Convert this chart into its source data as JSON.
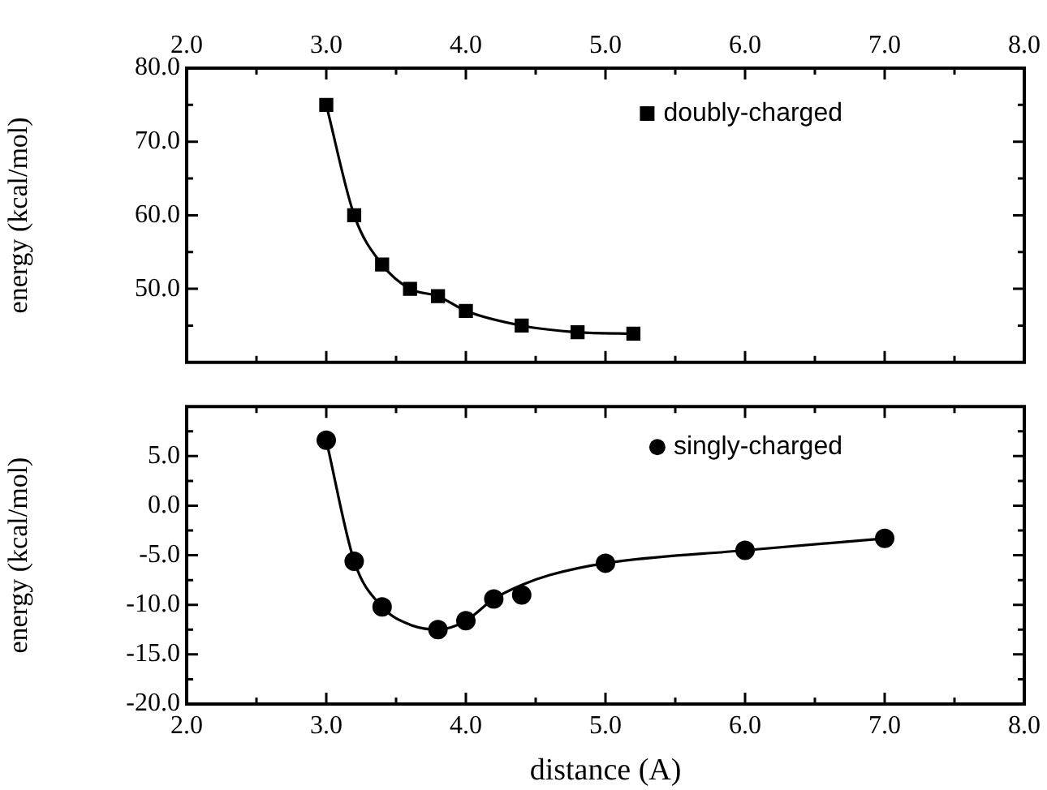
{
  "chart_data": [
    {
      "type": "line",
      "ylabel": "energy (kcal/mol)",
      "xlim": [
        2,
        8
      ],
      "xticks": [
        {
          "value": 2,
          "label": "2.0"
        },
        {
          "value": 2.5,
          "label": null
        },
        {
          "value": 3,
          "label": "3.0"
        },
        {
          "value": 3.5,
          "label": null
        },
        {
          "value": 4,
          "label": "4.0"
        },
        {
          "value": 4.5,
          "label": null
        },
        {
          "value": 5,
          "label": "5.0"
        },
        {
          "value": 5.5,
          "label": null
        },
        {
          "value": 6,
          "label": "6.0"
        },
        {
          "value": 6.5,
          "label": null
        },
        {
          "value": 7,
          "label": "7.0"
        },
        {
          "value": 7.5,
          "label": null
        },
        {
          "value": 8,
          "label": "8.0"
        }
      ],
      "ylim": [
        40,
        80
      ],
      "yticks": [
        {
          "value": 45,
          "label": null
        },
        {
          "value": 50,
          "label": "50.0"
        },
        {
          "value": 55,
          "label": null
        },
        {
          "value": 60,
          "label": "60.0"
        },
        {
          "value": 65,
          "label": null
        },
        {
          "value": 70,
          "label": "70.0"
        },
        {
          "value": 75,
          "label": null
        },
        {
          "value": 80,
          "label": "80.0"
        }
      ],
      "grid": false,
      "legend": "top right",
      "series": [
        {
          "name": "doubly-charged",
          "marker": "square",
          "color": "#000000",
          "x": [
            3.0,
            3.2,
            3.4,
            3.6,
            3.8,
            4.0,
            4.4,
            4.8,
            5.2
          ],
          "values": [
            75,
            60,
            53.3,
            50,
            49,
            47,
            45,
            44.1,
            43.9
          ]
        }
      ]
    },
    {
      "type": "scatter",
      "xlabel": "distance (A)",
      "ylabel": "energy (kcal/mol)",
      "xlim": [
        2,
        8
      ],
      "xticks": [
        {
          "value": 2,
          "label": "2.0"
        },
        {
          "value": 2.5,
          "label": null
        },
        {
          "value": 3,
          "label": "3.0"
        },
        {
          "value": 3.5,
          "label": null
        },
        {
          "value": 4,
          "label": "4.0"
        },
        {
          "value": 4.5,
          "label": null
        },
        {
          "value": 5,
          "label": "5.0"
        },
        {
          "value": 5.5,
          "label": null
        },
        {
          "value": 6,
          "label": "6.0"
        },
        {
          "value": 6.5,
          "label": null
        },
        {
          "value": 7,
          "label": "7.0"
        },
        {
          "value": 7.5,
          "label": null
        },
        {
          "value": 8,
          "label": "8.0"
        }
      ],
      "ylim": [
        -20,
        10
      ],
      "yticks": [
        {
          "value": -20,
          "label": "-20.0"
        },
        {
          "value": -17.5,
          "label": null
        },
        {
          "value": -15,
          "label": "-15.0"
        },
        {
          "value": -12.5,
          "label": null
        },
        {
          "value": -10,
          "label": "-10.0"
        },
        {
          "value": -7.5,
          "label": null
        },
        {
          "value": -5,
          "label": "-5.0"
        },
        {
          "value": -2.5,
          "label": null
        },
        {
          "value": 0,
          "label": "0.0"
        },
        {
          "value": 2.5,
          "label": null
        },
        {
          "value": 5,
          "label": "5.0"
        },
        {
          "value": 7.5,
          "label": null
        }
      ],
      "grid": false,
      "legend": "top right",
      "series": [
        {
          "name": "singly-charged",
          "marker": "circle",
          "color": "#000000",
          "x": [
            3.0,
            3.2,
            3.4,
            3.8,
            4.0,
            4.2,
            4.4,
            5.0,
            6.0,
            7.0
          ],
          "values": [
            6.6,
            -5.6,
            -10.2,
            -12.5,
            -11.6,
            -9.4,
            -9.0,
            -5.8,
            -4.5,
            -3.3
          ]
        },
        {
          "type": "line",
          "marker": "none",
          "color": "#000000",
          "x": [
            3.0,
            3.2,
            3.4,
            3.6,
            3.8,
            4.0,
            4.2,
            4.4,
            4.6,
            5.0,
            6.0,
            7.0
          ],
          "values": [
            6.6,
            -5.6,
            -10.2,
            -12.0,
            -12.5,
            -11.6,
            -9.4,
            -8.0,
            -7.0,
            -5.8,
            -4.5,
            -3.3
          ]
        }
      ]
    }
  ]
}
